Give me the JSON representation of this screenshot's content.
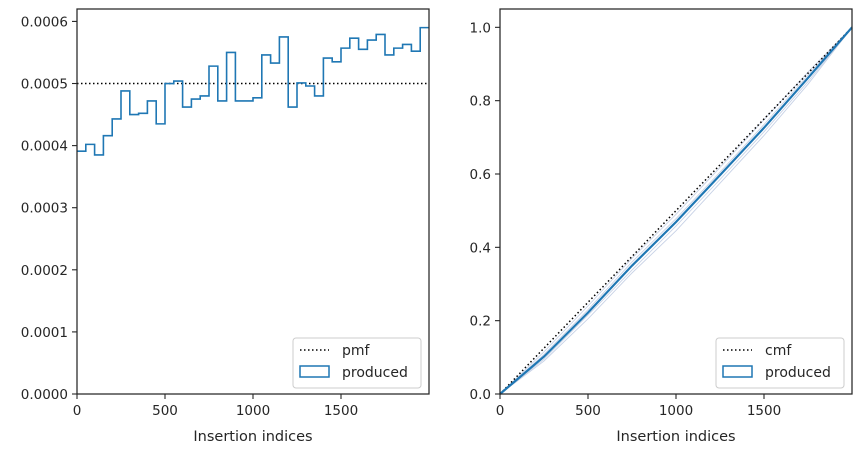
{
  "colors": {
    "series": "#1f77b4",
    "reference": "#000000",
    "band": "#c8d2e6",
    "axes": "#262626"
  },
  "chart_data": [
    {
      "type": "step",
      "title": "",
      "xlabel": "Insertion indices",
      "ylabel": "",
      "xlim": [
        0,
        2000
      ],
      "ylim": [
        0,
        0.00062
      ],
      "xticks": [
        0,
        500,
        1000,
        1500
      ],
      "xtick_labels": [
        "0",
        "500",
        "1000",
        "1500"
      ],
      "yticks": [
        0,
        0.0001,
        0.0002,
        0.0003,
        0.0004,
        0.0005,
        0.0006
      ],
      "ytick_labels": [
        "0.0000",
        "0.0001",
        "0.0002",
        "0.0003",
        "0.0004",
        "0.0005",
        "0.0006"
      ],
      "bin_width": 50,
      "bin_edges_start": 0,
      "series": [
        {
          "name": "produced",
          "style": "step-outline",
          "values": [
            0.000391,
            0.000402,
            0.000385,
            0.000416,
            0.000443,
            0.000488,
            0.00045,
            0.000452,
            0.000472,
            0.000435,
            0.0005,
            0.000504,
            0.000462,
            0.000475,
            0.00048,
            0.000528,
            0.000472,
            0.00055,
            0.000472,
            0.000472,
            0.000477,
            0.000546,
            0.000533,
            0.000575,
            0.000462,
            0.000501,
            0.000496,
            0.00048,
            0.000541,
            0.000535,
            0.000557,
            0.000573,
            0.000555,
            0.00057,
            0.000579,
            0.000546,
            0.000557,
            0.000563,
            0.000552,
            0.00059
          ]
        },
        {
          "name": "pmf",
          "style": "dotted",
          "value": 0.0005
        }
      ],
      "legend": {
        "position": "lower right",
        "entries": [
          "pmf",
          "produced"
        ]
      }
    },
    {
      "type": "line",
      "title": "",
      "xlabel": "Insertion indices",
      "ylabel": "",
      "xlim": [
        0,
        2000
      ],
      "ylim": [
        0,
        1.05
      ],
      "xticks": [
        0,
        500,
        1000,
        1500
      ],
      "xtick_labels": [
        "0",
        "500",
        "1000",
        "1500"
      ],
      "yticks": [
        0,
        0.2,
        0.4,
        0.6,
        0.8,
        1.0
      ],
      "ytick_labels": [
        "0.0",
        "0.2",
        "0.4",
        "0.6",
        "0.8",
        "1.0"
      ],
      "x": [
        0,
        250,
        500,
        750,
        1000,
        1250,
        1500,
        1750,
        2000
      ],
      "series": [
        {
          "name": "produced",
          "style": "solid",
          "values": [
            0,
            0.102,
            0.222,
            0.35,
            0.469,
            0.597,
            0.726,
            0.862,
            1.0
          ]
        },
        {
          "name": "cmf",
          "style": "dotted",
          "values": [
            0,
            0.125,
            0.25,
            0.375,
            0.5,
            0.625,
            0.75,
            0.875,
            1.0
          ]
        }
      ],
      "band_series": [
        [
          0,
          0.09,
          0.205,
          0.33,
          0.445,
          0.575,
          0.705,
          0.845,
          1.0
        ],
        [
          0,
          0.115,
          0.24,
          0.37,
          0.49,
          0.618,
          0.748,
          0.878,
          1.0
        ],
        [
          0,
          0.095,
          0.215,
          0.338,
          0.458,
          0.585,
          0.715,
          0.852,
          1.0
        ],
        [
          0,
          0.108,
          0.23,
          0.36,
          0.478,
          0.605,
          0.735,
          0.87,
          1.0
        ]
      ],
      "legend": {
        "position": "lower right",
        "entries": [
          "cmf",
          "produced"
        ]
      }
    }
  ]
}
